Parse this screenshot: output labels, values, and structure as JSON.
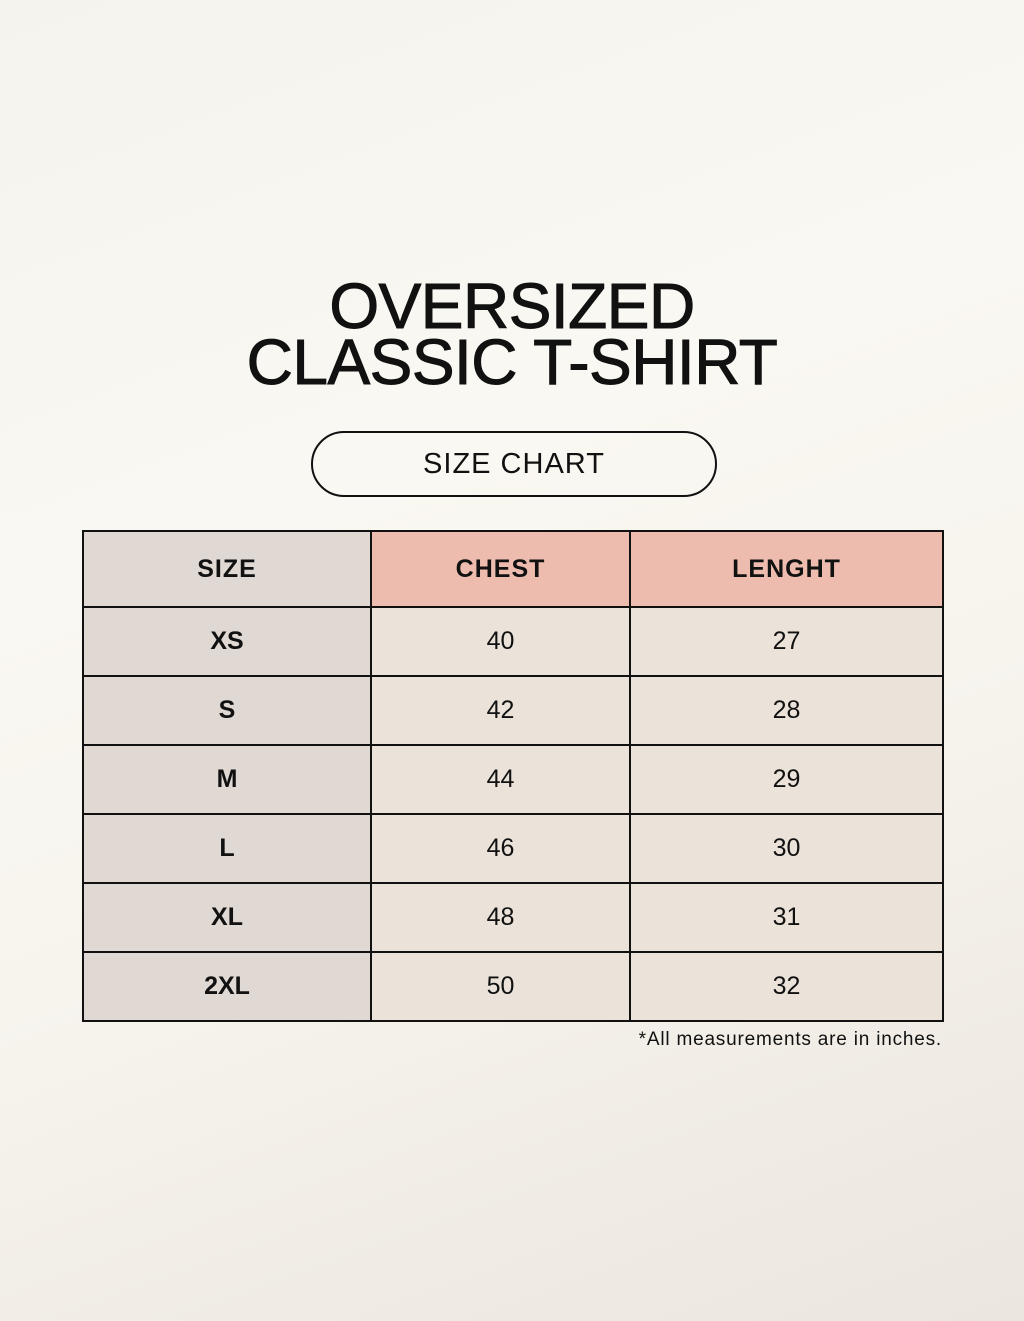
{
  "title": {
    "line1": "OVERSIZED",
    "line2": "CLASSIC T-SHIRT"
  },
  "badge": "SIZE CHART",
  "table": {
    "headers": [
      "SIZE",
      "CHEST",
      "LENGHT"
    ],
    "rows": [
      [
        "XS",
        "40",
        "27"
      ],
      [
        "S",
        "42",
        "28"
      ],
      [
        "M",
        "44",
        "29"
      ],
      [
        "L",
        "46",
        "30"
      ],
      [
        "XL",
        "48",
        "31"
      ],
      [
        "2XL",
        "50",
        "32"
      ]
    ]
  },
  "note": "*All measurements are in inches.",
  "colors": {
    "size_column": "#e0d8d3",
    "header_accent": "#eebcae",
    "value_cells": "#ebe3d9"
  }
}
